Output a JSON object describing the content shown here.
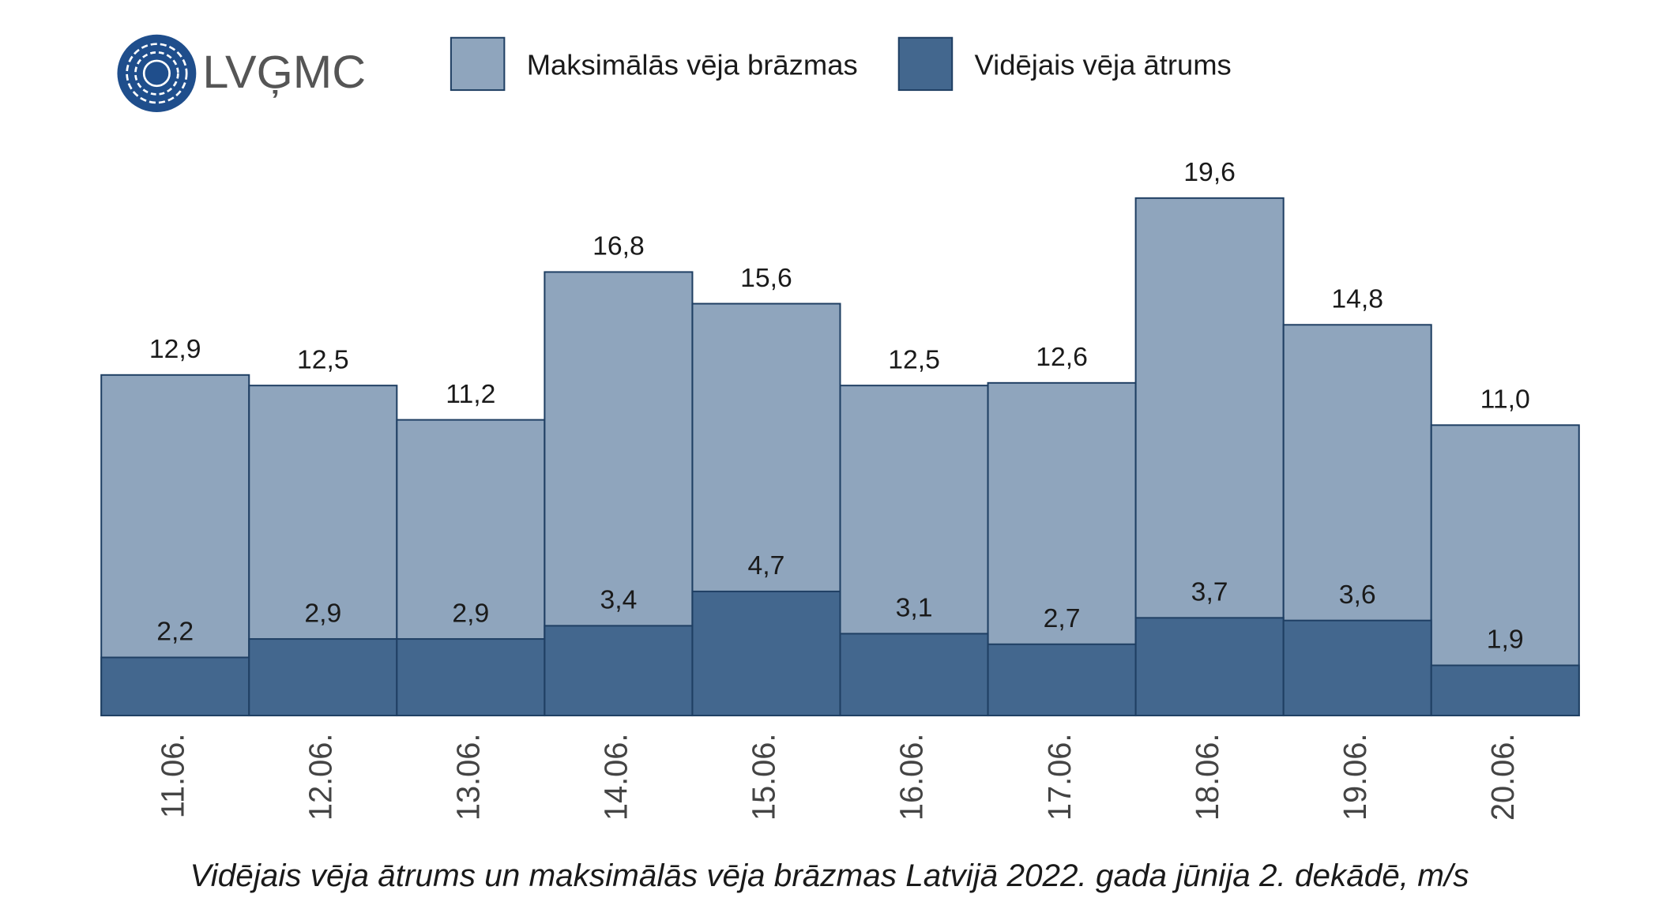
{
  "logo": "LVĢMC",
  "chart_data": {
    "type": "bar",
    "title": "Vidējais vēja ātrums un maksimālās vēja brāzmas Latvijā 2022. gada jūnija 2. dekādē, m/s",
    "categories": [
      "11.06.",
      "12.06.",
      "13.06.",
      "14.06.",
      "15.06.",
      "16.06.",
      "17.06.",
      "18.06.",
      "19.06.",
      "20.06."
    ],
    "series": [
      {
        "name": "Maksimālās vēja brāzmas",
        "color": "#8fa5bd",
        "values": [
          12.9,
          12.5,
          11.2,
          16.8,
          15.6,
          12.5,
          12.6,
          19.6,
          14.8,
          11.0
        ],
        "value_labels": [
          "12,9",
          "12,5",
          "11,2",
          "16,8",
          "15,6",
          "12,5",
          "12,6",
          "19,6",
          "14,8",
          "11,0"
        ]
      },
      {
        "name": "Vidējais vēja ātrums",
        "color": "#43678e",
        "values": [
          2.2,
          2.9,
          2.9,
          3.4,
          4.7,
          3.1,
          2.7,
          3.7,
          3.6,
          1.9
        ],
        "value_labels": [
          "2,2",
          "2,9",
          "2,9",
          "3,4",
          "4,7",
          "3,1",
          "2,7",
          "3,7",
          "3,6",
          "1,9"
        ]
      }
    ],
    "ylim": [
      0,
      20
    ]
  }
}
